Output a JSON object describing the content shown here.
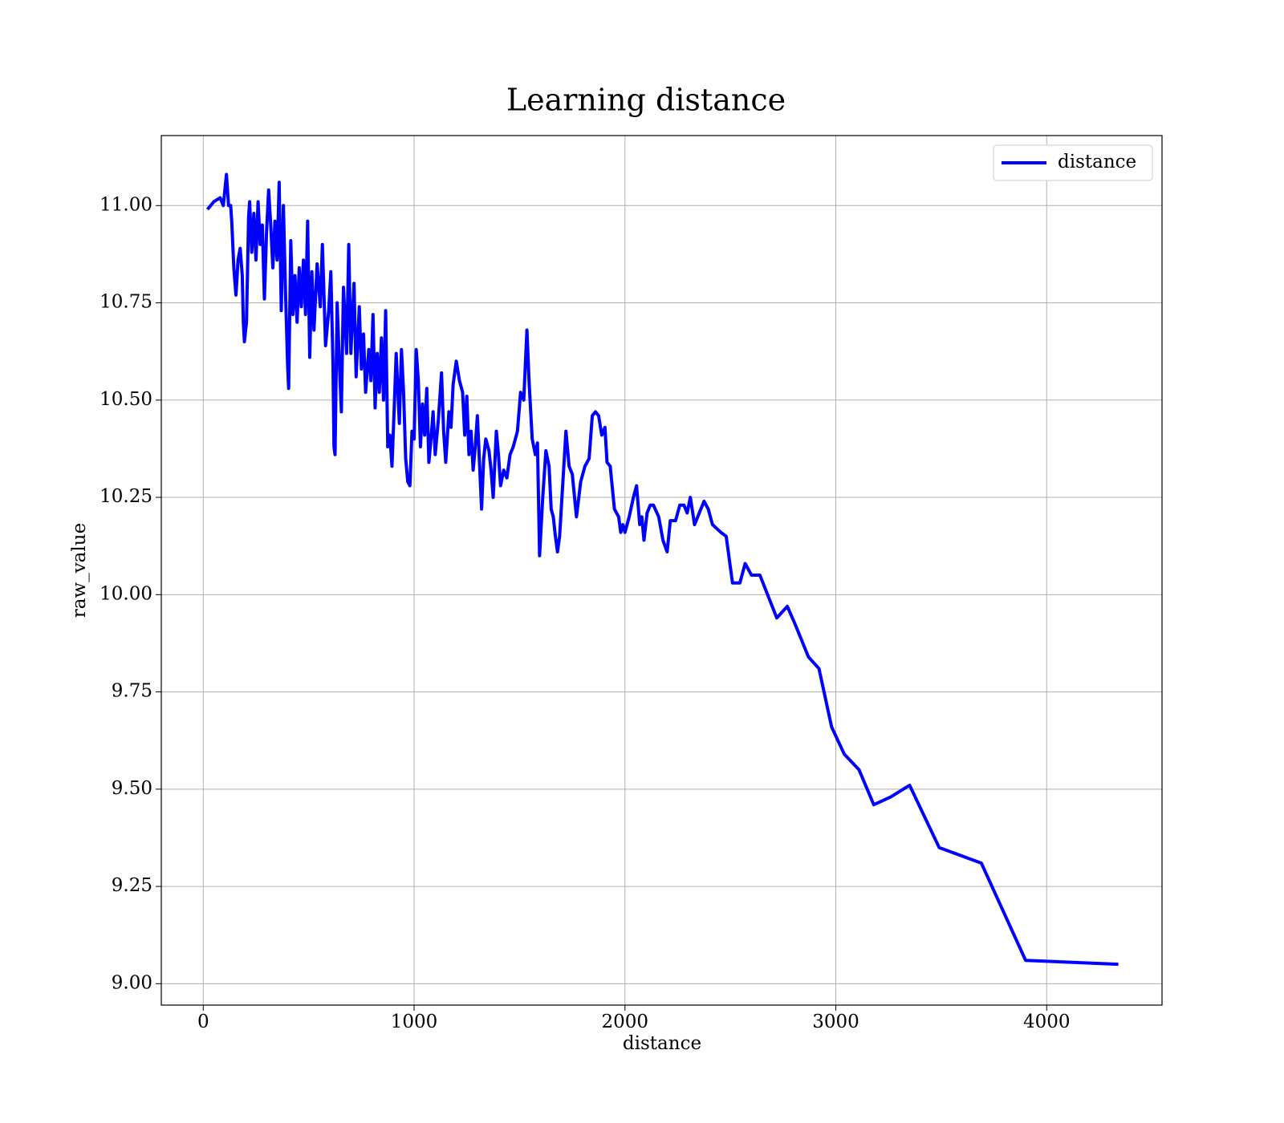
{
  "chart_data": {
    "type": "line",
    "title": "Learning distance",
    "x_label": "distance",
    "y_label": "raw_value",
    "xlim": [
      -199,
      4547
    ],
    "ylim": [
      8.945,
      11.18
    ],
    "xticks": [
      0,
      1000,
      2000,
      3000,
      4000
    ],
    "yticks": [
      {
        "value": 9,
        "label": "9.00"
      },
      9.25,
      {
        "value": 9.5,
        "label": "9.50"
      },
      9.75,
      {
        "value": 10,
        "label": "10.00"
      },
      10.25,
      {
        "value": 10.5,
        "label": "10.50"
      },
      10.75,
      {
        "value": 11,
        "label": "11.00"
      }
    ],
    "grid": true,
    "legend": "upper right",
    "x": [
      20,
      50,
      80,
      95,
      110,
      120,
      130,
      135,
      145,
      155,
      165,
      175,
      185,
      190,
      195,
      205,
      215,
      220,
      230,
      240,
      250,
      260,
      270,
      280,
      290,
      300,
      310,
      320,
      330,
      340,
      350,
      360,
      370,
      380,
      390,
      400,
      405,
      415,
      425,
      435,
      445,
      455,
      465,
      475,
      485,
      495,
      505,
      515,
      525,
      540,
      555,
      565,
      580,
      595,
      605,
      615,
      620,
      625,
      635,
      645,
      655,
      665,
      680,
      690,
      700,
      715,
      725,
      740,
      750,
      760,
      770,
      785,
      795,
      805,
      815,
      825,
      835,
      845,
      855,
      865,
      875,
      885,
      895,
      905,
      915,
      930,
      940,
      950,
      960,
      970,
      980,
      990,
      1000,
      1010,
      1020,
      1030,
      1040,
      1050,
      1060,
      1070,
      1080,
      1090,
      1100,
      1115,
      1130,
      1140,
      1150,
      1165,
      1175,
      1185,
      1200,
      1215,
      1230,
      1240,
      1250,
      1260,
      1270,
      1280,
      1290,
      1300,
      1320,
      1330,
      1340,
      1355,
      1365,
      1375,
      1390,
      1400,
      1410,
      1425,
      1440,
      1455,
      1470,
      1490,
      1505,
      1520,
      1535,
      1545,
      1560,
      1575,
      1585,
      1595,
      1610,
      1625,
      1640,
      1650,
      1660,
      1670,
      1680,
      1690,
      1700,
      1720,
      1735,
      1750,
      1770,
      1790,
      1810,
      1830,
      1845,
      1860,
      1875,
      1890,
      1905,
      1915,
      1930,
      1950,
      1970,
      1980,
      1990,
      2000,
      2020,
      2040,
      2055,
      2070,
      2080,
      2090,
      2105,
      2120,
      2135,
      2160,
      2180,
      2200,
      2215,
      2240,
      2260,
      2280,
      2295,
      2310,
      2330,
      2360,
      2375,
      2395,
      2415,
      2455,
      2480,
      2510,
      2545,
      2570,
      2600,
      2640,
      2720,
      2770,
      2810,
      2870,
      2920,
      2980,
      3040,
      3110,
      3180,
      3260,
      3350,
      3490,
      3690,
      3900,
      4340
    ],
    "series": [
      {
        "name": "distance",
        "color": "#0000ff",
        "values": [
          10.99,
          11.01,
          11.02,
          11.0,
          11.08,
          11.0,
          11.0,
          10.96,
          10.84,
          10.77,
          10.86,
          10.89,
          10.82,
          10.7,
          10.65,
          10.7,
          10.97,
          11.01,
          10.88,
          10.98,
          10.86,
          11.01,
          10.9,
          10.95,
          10.76,
          10.93,
          11.04,
          10.95,
          10.84,
          10.96,
          10.86,
          11.06,
          10.73,
          11.0,
          10.78,
          10.59,
          10.53,
          10.91,
          10.72,
          10.82,
          10.7,
          10.84,
          10.74,
          10.86,
          10.72,
          10.96,
          10.61,
          10.83,
          10.68,
          10.85,
          10.74,
          10.9,
          10.64,
          10.73,
          10.83,
          10.6,
          10.38,
          10.36,
          10.75,
          10.6,
          10.47,
          10.79,
          10.62,
          10.9,
          10.62,
          10.8,
          10.56,
          10.74,
          10.58,
          10.67,
          10.52,
          10.63,
          10.55,
          10.72,
          10.48,
          10.62,
          10.52,
          10.66,
          10.5,
          10.73,
          10.38,
          10.41,
          10.33,
          10.47,
          10.62,
          10.44,
          10.63,
          10.52,
          10.35,
          10.29,
          10.28,
          10.42,
          10.4,
          10.63,
          10.55,
          10.38,
          10.49,
          10.41,
          10.53,
          10.34,
          10.4,
          10.47,
          10.36,
          10.45,
          10.57,
          10.42,
          10.34,
          10.47,
          10.43,
          10.54,
          10.6,
          10.55,
          10.52,
          10.41,
          10.51,
          10.36,
          10.42,
          10.32,
          10.38,
          10.46,
          10.22,
          10.35,
          10.4,
          10.37,
          10.32,
          10.25,
          10.42,
          10.36,
          10.28,
          10.32,
          10.3,
          10.36,
          10.38,
          10.42,
          10.52,
          10.5,
          10.68,
          10.55,
          10.4,
          10.36,
          10.39,
          10.1,
          10.25,
          10.37,
          10.33,
          10.22,
          10.2,
          10.15,
          10.11,
          10.15,
          10.24,
          10.42,
          10.33,
          10.31,
          10.2,
          10.29,
          10.33,
          10.35,
          10.46,
          10.47,
          10.46,
          10.41,
          10.43,
          10.34,
          10.33,
          10.22,
          10.2,
          10.16,
          10.18,
          10.16,
          10.2,
          10.25,
          10.28,
          10.18,
          10.2,
          10.14,
          10.21,
          10.23,
          10.23,
          10.2,
          10.14,
          10.11,
          10.19,
          10.19,
          10.23,
          10.23,
          10.21,
          10.25,
          10.18,
          10.22,
          10.24,
          10.22,
          10.18,
          10.16,
          10.15,
          10.03,
          10.03,
          10.08,
          10.05,
          10.05,
          9.94,
          9.97,
          9.92,
          9.84,
          9.81,
          9.66,
          9.59,
          9.55,
          9.46,
          9.48,
          9.51,
          9.35,
          9.31,
          9.06,
          9.05
        ]
      }
    ]
  }
}
